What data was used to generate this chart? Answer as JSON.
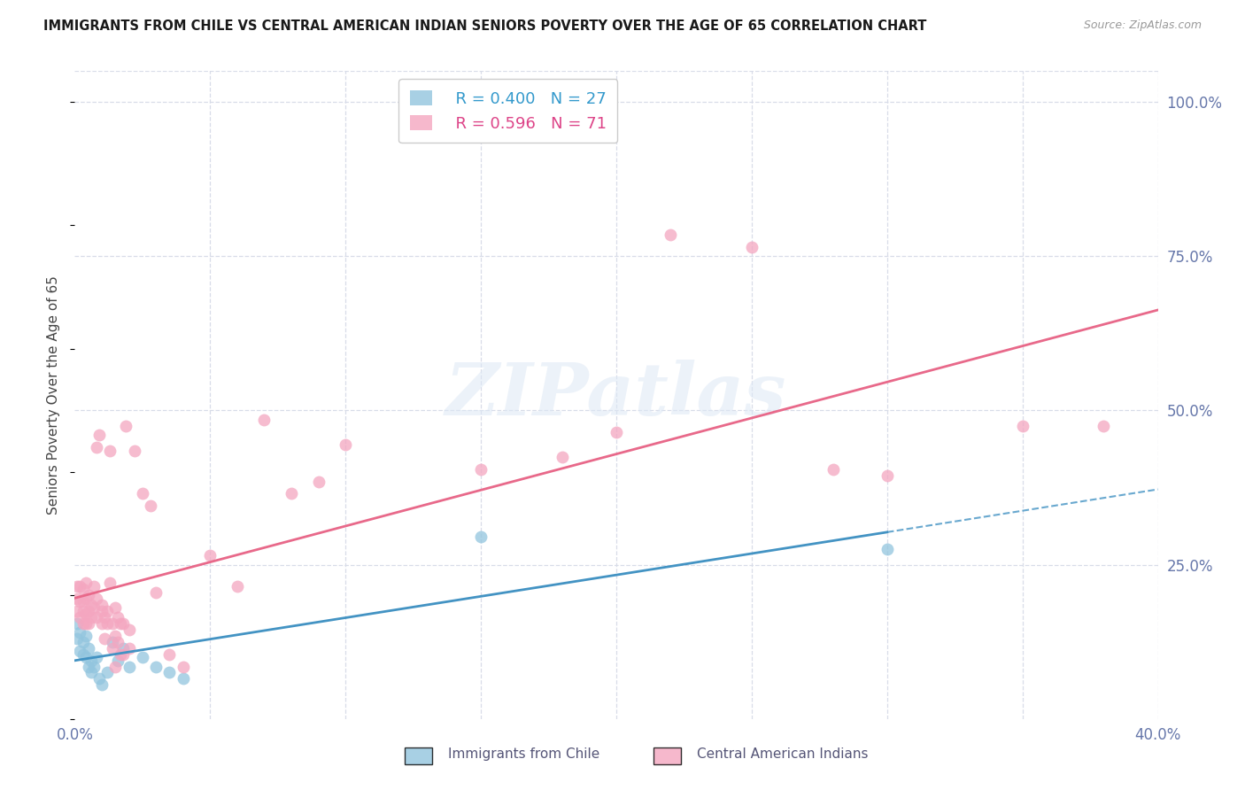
{
  "title": "IMMIGRANTS FROM CHILE VS CENTRAL AMERICAN INDIAN SENIORS POVERTY OVER THE AGE OF 65 CORRELATION CHART",
  "source": "Source: ZipAtlas.com",
  "ylabel": "Seniors Poverty Over the Age of 65",
  "xmin": 0.0,
  "xmax": 0.4,
  "ymin": 0.0,
  "ymax": 1.05,
  "ytick_positions": [
    0.0,
    0.25,
    0.5,
    0.75,
    1.0
  ],
  "ytick_labels": [
    "",
    "25.0%",
    "50.0%",
    "75.0%",
    "100.0%"
  ],
  "legend_title_blue": "Immigrants from Chile",
  "legend_title_pink": "Central American Indians",
  "watermark": "ZIPatlas",
  "chile_color": "#92c5de",
  "cai_color": "#f4a6c0",
  "chile_line_color": "#4393c3",
  "cai_line_color": "#e8698a",
  "chile_points": [
    [
      0.001,
      0.155
    ],
    [
      0.001,
      0.13
    ],
    [
      0.002,
      0.14
    ],
    [
      0.002,
      0.11
    ],
    [
      0.003,
      0.125
    ],
    [
      0.003,
      0.105
    ],
    [
      0.004,
      0.135
    ],
    [
      0.004,
      0.1
    ],
    [
      0.005,
      0.115
    ],
    [
      0.005,
      0.085
    ],
    [
      0.006,
      0.095
    ],
    [
      0.006,
      0.075
    ],
    [
      0.007,
      0.085
    ],
    [
      0.008,
      0.1
    ],
    [
      0.009,
      0.065
    ],
    [
      0.01,
      0.055
    ],
    [
      0.012,
      0.075
    ],
    [
      0.014,
      0.125
    ],
    [
      0.016,
      0.095
    ],
    [
      0.018,
      0.115
    ],
    [
      0.02,
      0.085
    ],
    [
      0.025,
      0.1
    ],
    [
      0.03,
      0.085
    ],
    [
      0.035,
      0.075
    ],
    [
      0.04,
      0.065
    ],
    [
      0.15,
      0.295
    ],
    [
      0.3,
      0.275
    ]
  ],
  "cai_points": [
    [
      0.001,
      0.175
    ],
    [
      0.001,
      0.195
    ],
    [
      0.001,
      0.215
    ],
    [
      0.002,
      0.165
    ],
    [
      0.002,
      0.19
    ],
    [
      0.002,
      0.215
    ],
    [
      0.003,
      0.175
    ],
    [
      0.003,
      0.19
    ],
    [
      0.003,
      0.21
    ],
    [
      0.003,
      0.155
    ],
    [
      0.004,
      0.17
    ],
    [
      0.004,
      0.195
    ],
    [
      0.004,
      0.22
    ],
    [
      0.004,
      0.155
    ],
    [
      0.005,
      0.175
    ],
    [
      0.005,
      0.2
    ],
    [
      0.005,
      0.155
    ],
    [
      0.006,
      0.185
    ],
    [
      0.006,
      0.165
    ],
    [
      0.007,
      0.18
    ],
    [
      0.007,
      0.215
    ],
    [
      0.008,
      0.165
    ],
    [
      0.008,
      0.195
    ],
    [
      0.008,
      0.44
    ],
    [
      0.009,
      0.46
    ],
    [
      0.01,
      0.175
    ],
    [
      0.01,
      0.185
    ],
    [
      0.01,
      0.155
    ],
    [
      0.011,
      0.165
    ],
    [
      0.011,
      0.13
    ],
    [
      0.012,
      0.155
    ],
    [
      0.012,
      0.175
    ],
    [
      0.013,
      0.22
    ],
    [
      0.013,
      0.435
    ],
    [
      0.014,
      0.155
    ],
    [
      0.014,
      0.115
    ],
    [
      0.015,
      0.18
    ],
    [
      0.015,
      0.135
    ],
    [
      0.015,
      0.085
    ],
    [
      0.016,
      0.165
    ],
    [
      0.016,
      0.125
    ],
    [
      0.017,
      0.155
    ],
    [
      0.017,
      0.105
    ],
    [
      0.018,
      0.155
    ],
    [
      0.018,
      0.105
    ],
    [
      0.019,
      0.475
    ],
    [
      0.02,
      0.145
    ],
    [
      0.02,
      0.115
    ],
    [
      0.022,
      0.435
    ],
    [
      0.025,
      0.365
    ],
    [
      0.028,
      0.345
    ],
    [
      0.03,
      0.205
    ],
    [
      0.035,
      0.105
    ],
    [
      0.04,
      0.085
    ],
    [
      0.05,
      0.265
    ],
    [
      0.06,
      0.215
    ],
    [
      0.07,
      0.485
    ],
    [
      0.08,
      0.365
    ],
    [
      0.09,
      0.385
    ],
    [
      0.1,
      0.445
    ],
    [
      0.15,
      0.405
    ],
    [
      0.18,
      0.425
    ],
    [
      0.2,
      0.465
    ],
    [
      0.22,
      0.785
    ],
    [
      0.25,
      0.765
    ],
    [
      0.28,
      0.405
    ],
    [
      0.3,
      0.395
    ],
    [
      0.35,
      0.475
    ],
    [
      0.38,
      0.475
    ]
  ],
  "grid_x": [
    0.05,
    0.1,
    0.15,
    0.2,
    0.25,
    0.3,
    0.35
  ],
  "grid_color": "#d8dce8",
  "tick_color": "#6677aa"
}
